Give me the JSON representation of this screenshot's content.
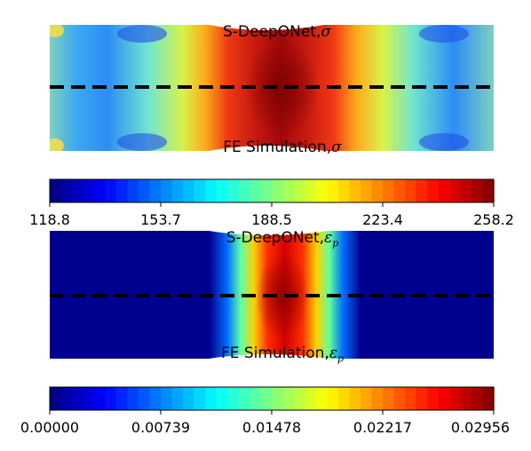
{
  "panels": [
    {
      "id": "stress",
      "top_title": "S-DeepONet,",
      "top_symbol": "σ",
      "top_sub": "",
      "bottom_title": "FE Simulation,",
      "bottom_symbol": "σ",
      "bottom_sub": "",
      "colorbar_ticks": [
        "118.8",
        "153.7",
        "188.5",
        "223.4",
        "258.2"
      ],
      "range": [
        118.8,
        258.2
      ]
    },
    {
      "id": "plastic-strain",
      "top_title": "S-DeepONet,",
      "top_symbol": "ε",
      "top_sub": "p",
      "bottom_title": "FE Simulation,",
      "bottom_symbol": "ε",
      "bottom_sub": "p",
      "colorbar_ticks": [
        "0.00000",
        "0.00739",
        "0.01478",
        "0.02217",
        "0.02956"
      ],
      "range": [
        0.0,
        0.02956
      ]
    }
  ],
  "colormap": "jet",
  "colorbar_levels": 40,
  "divider_style": "dashed-black"
}
